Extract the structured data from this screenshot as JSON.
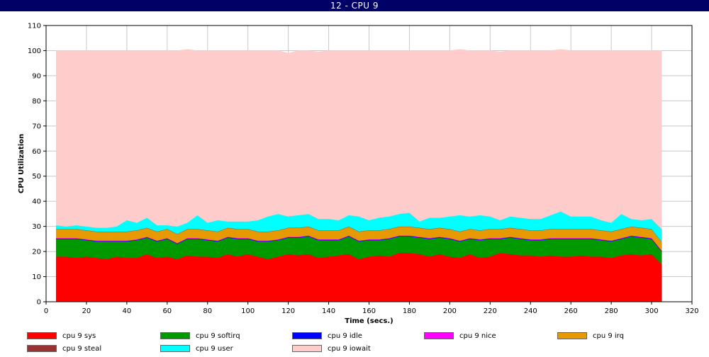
{
  "window": {
    "title": "12 - CPU 9"
  },
  "chart_data": {
    "type": "area",
    "stacked": true,
    "xlabel": "Time (secs.)",
    "ylabel": "CPU Utilization",
    "xlim": [
      0,
      320
    ],
    "ylim": [
      0,
      110
    ],
    "xticks": [
      0,
      20,
      40,
      60,
      80,
      100,
      120,
      140,
      160,
      180,
      200,
      220,
      240,
      260,
      280,
      300,
      320
    ],
    "yticks": [
      0,
      10,
      20,
      30,
      40,
      50,
      60,
      70,
      80,
      90,
      100,
      110
    ],
    "grid": true,
    "legend_position": "bottom",
    "x": [
      5,
      10,
      15,
      20,
      25,
      30,
      35,
      40,
      45,
      50,
      55,
      60,
      65,
      70,
      75,
      80,
      85,
      90,
      95,
      100,
      105,
      110,
      115,
      120,
      125,
      130,
      135,
      140,
      145,
      150,
      155,
      160,
      165,
      170,
      175,
      180,
      185,
      190,
      195,
      200,
      205,
      210,
      215,
      220,
      225,
      230,
      235,
      240,
      245,
      250,
      255,
      260,
      265,
      270,
      275,
      280,
      285,
      290,
      295,
      300,
      305
    ],
    "series": [
      {
        "name": "cpu 9 sys",
        "color": "#ff0000",
        "values": [
          18,
          18,
          17.5,
          18,
          17.5,
          17,
          18,
          17.5,
          17.5,
          19,
          17.5,
          18,
          17,
          18.5,
          18,
          18,
          17.5,
          19,
          18,
          19,
          18,
          17,
          18,
          19,
          18.5,
          19,
          17.5,
          18,
          18.5,
          19,
          17,
          18,
          18.5,
          18,
          19.5,
          19.5,
          19,
          18,
          19,
          18,
          17.5,
          19,
          17.5,
          18,
          19.5,
          19,
          18.5,
          18.5,
          18,
          18.5,
          18,
          18,
          18.5,
          18,
          18,
          17.5,
          18.5,
          19,
          18.5,
          19,
          15
        ]
      },
      {
        "name": "cpu 9 softirq",
        "color": "#009900",
        "values": [
          7,
          7,
          7.5,
          6.5,
          6.5,
          7,
          6,
          6.5,
          7,
          6.5,
          6.5,
          7,
          6,
          6.5,
          7,
          6.5,
          6.5,
          6.5,
          7,
          6,
          6,
          7,
          6.5,
          6.5,
          7,
          7,
          7,
          6.5,
          6,
          7,
          7,
          6.5,
          6,
          7,
          6.5,
          6.5,
          6.5,
          7,
          6.5,
          7,
          6.5,
          6,
          7,
          7,
          5.5,
          6.5,
          6.5,
          6,
          6.5,
          6.5,
          7,
          7,
          6.5,
          7,
          6.5,
          6.5,
          6.5,
          7,
          7,
          6,
          5
        ]
      },
      {
        "name": "cpu 9 idle",
        "color": "#0000ff",
        "values": [
          0.2,
          0.2,
          0.2,
          0.2,
          0.2,
          0.2,
          0.2,
          0.2,
          0.2,
          0.2,
          0.2,
          0.2,
          0.2,
          0.2,
          0.2,
          0.2,
          0.2,
          0.2,
          0.2,
          0.2,
          0.2,
          0.2,
          0.2,
          0.2,
          0.2,
          0.2,
          0.2,
          0.2,
          0.2,
          0.2,
          0.2,
          0.2,
          0.2,
          0.2,
          0.2,
          0.2,
          0.2,
          0.2,
          0.2,
          0.2,
          0.2,
          0.2,
          0.2,
          0.2,
          0.2,
          0.2,
          0.2,
          0.2,
          0.2,
          0.2,
          0.2,
          0.2,
          0.2,
          0.2,
          0.2,
          0.2,
          0.2,
          0.2,
          0.2,
          0.2,
          0.2
        ]
      },
      {
        "name": "cpu 9 nice",
        "color": "#ff00ff",
        "values": [
          0.2,
          0.2,
          0.2,
          0.2,
          0.2,
          0.2,
          0.2,
          0.2,
          0.2,
          0.2,
          0.2,
          0.2,
          0.2,
          0.2,
          0.2,
          0.2,
          0.2,
          0.2,
          0.2,
          0.2,
          0.2,
          0.2,
          0.2,
          0.2,
          0.2,
          0.2,
          0.2,
          0.2,
          0.2,
          0.2,
          0.2,
          0.2,
          0.2,
          0.2,
          0.2,
          0.2,
          0.2,
          0.2,
          0.2,
          0.2,
          0.2,
          0.2,
          0.2,
          0.2,
          0.2,
          0.2,
          0.2,
          0.2,
          0.2,
          0.2,
          0.2,
          0.2,
          0.2,
          0.2,
          0.2,
          0.2,
          0.2,
          0.2,
          0.2,
          0.2,
          0.2
        ]
      },
      {
        "name": "cpu 9 irq",
        "color": "#e69900",
        "values": [
          3.5,
          3.5,
          3.5,
          3.5,
          3.5,
          3.5,
          3.5,
          3.5,
          3.5,
          3.5,
          3.5,
          3.5,
          3.5,
          3.5,
          3.5,
          3.5,
          3.5,
          3.5,
          3.5,
          3.5,
          3.5,
          3.5,
          3.5,
          3.5,
          3.5,
          3.5,
          3.5,
          3.5,
          3.5,
          3.5,
          3.5,
          3.5,
          3.5,
          3.5,
          3.5,
          3.5,
          3.5,
          3.5,
          3.5,
          3.5,
          3.5,
          3.5,
          3.5,
          3.5,
          3.5,
          3.5,
          3.5,
          3.5,
          3.5,
          3.5,
          3.5,
          3.5,
          3.5,
          3.5,
          3.5,
          3.5,
          3.5,
          3.5,
          3.5,
          3.5,
          3.5
        ]
      },
      {
        "name": "cpu 9 steal",
        "color": "#993333",
        "values": [
          0.1,
          0.1,
          0.1,
          0.1,
          0.1,
          0.1,
          0.1,
          0.1,
          0.1,
          0.1,
          0.1,
          0.1,
          0.1,
          0.1,
          0.1,
          0.1,
          0.1,
          0.1,
          0.1,
          0.1,
          0.1,
          0.1,
          0.1,
          0.1,
          0.1,
          0.1,
          0.1,
          0.1,
          0.1,
          0.1,
          0.1,
          0.1,
          0.1,
          0.1,
          0.1,
          0.1,
          0.1,
          0.1,
          0.1,
          0.1,
          0.1,
          0.1,
          0.1,
          0.1,
          0.1,
          0.1,
          0.1,
          0.1,
          0.1,
          0.1,
          0.1,
          0.1,
          0.1,
          0.1,
          0.1,
          0.1,
          0.1,
          0.1,
          0.1,
          0.1,
          0.1
        ]
      },
      {
        "name": "cpu 9 user",
        "color": "#00ffff",
        "values": [
          1.5,
          1,
          1.5,
          1.5,
          1.5,
          1.5,
          2,
          4.5,
          3,
          4,
          2.5,
          1.5,
          3,
          2.5,
          5.5,
          3,
          4.5,
          2.5,
          3,
          3,
          4.5,
          6,
          6.5,
          4.5,
          5,
          5,
          4.5,
          4.5,
          4,
          4.5,
          6,
          4,
          5,
          5,
          5,
          5.5,
          2.5,
          4.5,
          4,
          5,
          6.5,
          5,
          6,
          5,
          3.5,
          4.5,
          4.5,
          4.5,
          4.5,
          5.5,
          7,
          5,
          5,
          5,
          4,
          3.5,
          6,
          3,
          3,
          4,
          5
        ]
      },
      {
        "name": "cpu 9 iowait",
        "color": "#ffcccc",
        "values": [
          69.5,
          70,
          69.5,
          70,
          70.5,
          70.5,
          70,
          67.5,
          68.5,
          66.5,
          69.5,
          69.5,
          70,
          69,
          65.5,
          68.5,
          67.5,
          68,
          68,
          68,
          67.5,
          66,
          65,
          65,
          65.5,
          65,
          66.5,
          67,
          67.5,
          65.5,
          66,
          67.5,
          66.5,
          66,
          65,
          64.5,
          68,
          66.5,
          66.5,
          66,
          66,
          66,
          65.5,
          66,
          67,
          66,
          66.5,
          67,
          67,
          65.5,
          64.5,
          66,
          66,
          66,
          67.5,
          68.5,
          65,
          67,
          67.5,
          67,
          71
        ]
      }
    ]
  }
}
